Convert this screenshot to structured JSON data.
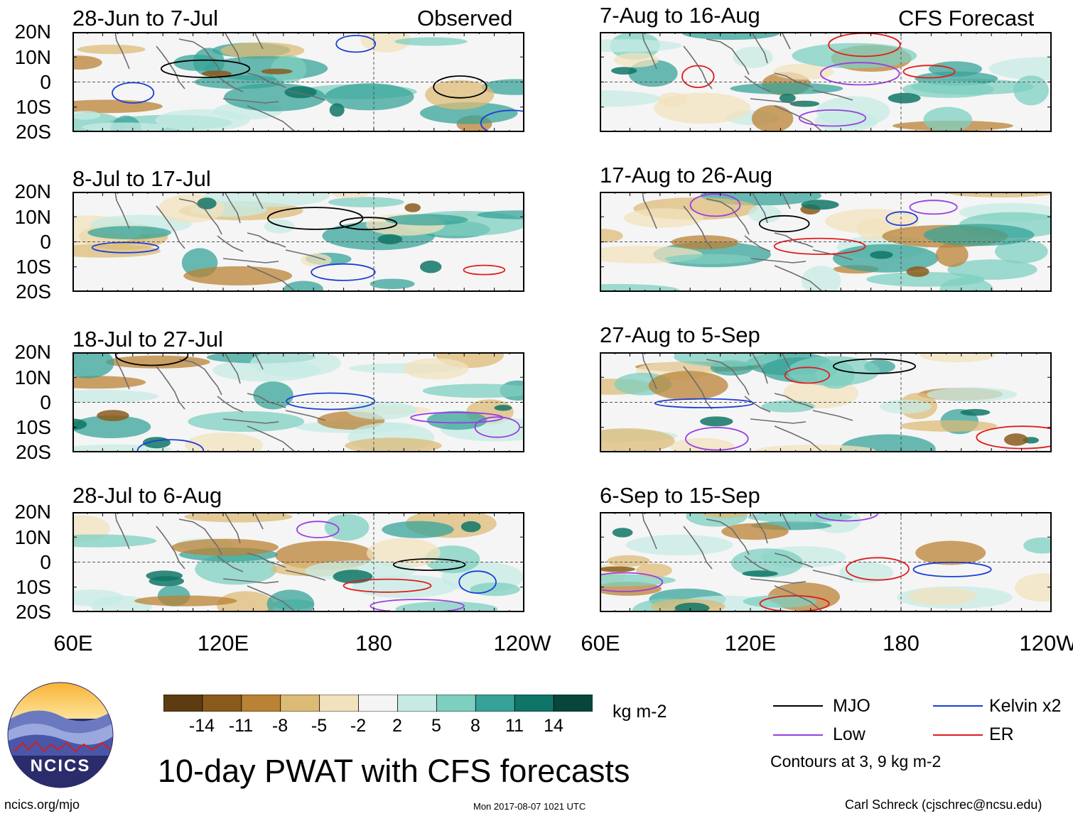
{
  "header": {
    "left_title": "Observed",
    "right_title": "CFS Forecast"
  },
  "panels_left": [
    {
      "label": "28-Jun to 7-Jul"
    },
    {
      "label": "8-Jul to 17-Jul"
    },
    {
      "label": "18-Jul to 27-Jul"
    },
    {
      "label": "28-Jul to 6-Aug"
    }
  ],
  "panels_right": [
    {
      "label": "7-Aug to 16-Aug"
    },
    {
      "label": "17-Aug to 26-Aug"
    },
    {
      "label": "27-Aug to 5-Sep"
    },
    {
      "label": "6-Sep to 15-Sep"
    }
  ],
  "lat_ticks": [
    "20N",
    "10N",
    "0",
    "10S",
    "20S"
  ],
  "lon_ticks": [
    "60E",
    "120E",
    "180",
    "120W"
  ],
  "colorbar": {
    "unit": "kg m-2",
    "labels": [
      "-14",
      "-11",
      "-8",
      "-5",
      "-2",
      "2",
      "5",
      "8",
      "11",
      "14"
    ],
    "colors": [
      "#5e3c11",
      "#8a5a1c",
      "#b98234",
      "#dcbb77",
      "#f2e2bd",
      "#f5f5f5",
      "#c7ebe4",
      "#7dcfc0",
      "#37a398",
      "#0f7566",
      "#08453b"
    ]
  },
  "legend": {
    "items": [
      {
        "label": "MJO",
        "color": "#000000"
      },
      {
        "label": "Kelvin x2",
        "color": "#1a3fd6"
      },
      {
        "label": "Low",
        "color": "#9a3ee0"
      },
      {
        "label": "ER",
        "color": "#e01c1c"
      }
    ],
    "note": "Contours at 3, 9 kg m-2"
  },
  "footer": {
    "main_title": "10-day PWAT with CFS forecasts",
    "logo_text": "NCICS",
    "url": "ncics.org/mjo",
    "timestamp": "Mon 2017-08-07 1021 UTC",
    "credit": "Carl Schreck (cjschrec@ncsu.edu)"
  }
}
